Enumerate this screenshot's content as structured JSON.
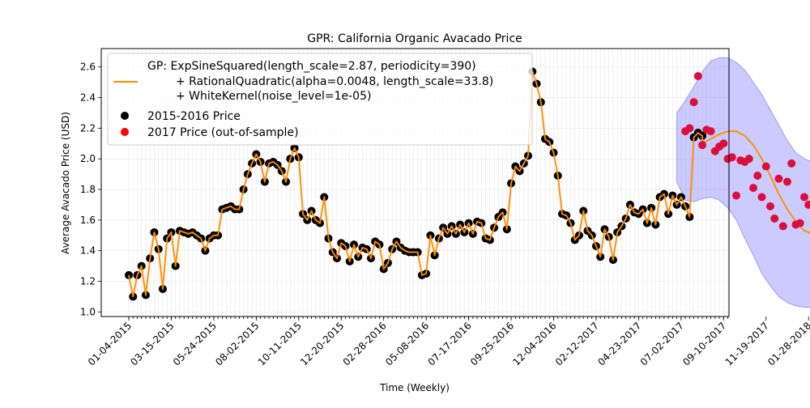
{
  "chart_data": {
    "type": "scatter",
    "title": "GPR: California Organic Avacado Price",
    "xlabel": "Time (Weekly)",
    "ylabel": "Average Avacado Price (USD)",
    "ylim": [
      0.97,
      2.72
    ],
    "yticks": [
      "1.0",
      "1.2",
      "1.4",
      "1.6",
      "1.8",
      "2.0",
      "2.2",
      "2.4",
      "2.6"
    ],
    "xtick_labels": [
      "01-04-2015",
      "03-15-2015",
      "05-24-2015",
      "08-02-2015",
      "10-11-2015",
      "12-20-2015",
      "02-28-2016",
      "05-08-2016",
      "07-17-2016",
      "09-25-2016",
      "12-04-2016",
      "02-12-2017",
      "04-23-2017",
      "07-02-2017",
      "09-10-2017",
      "11-19-2017",
      "01-28-2018"
    ],
    "grid": true,
    "legend_position": "upper-left",
    "legend": {
      "gp_line1": "GP: ExpSineSquared(length_scale=2.87, periodicity=390)",
      "gp_line2": "+ RationalQuadratic(alpha=0.0048, length_scale=33.8)",
      "gp_line3": "+ WhiteKernel(noise_level=1e-05)",
      "train_label": "2015-2016 Price",
      "test_label": "2017 Price (out-of-sample)"
    },
    "colors": {
      "gp_line": "#ff8c00",
      "train": "#000000",
      "test": "#ff0000",
      "band": "#6b6bff"
    },
    "series": [
      {
        "name": "2015-2016 Price",
        "x_start": "01-04-2015",
        "x_step_weeks": 1,
        "values": [
          1.24,
          1.1,
          1.24,
          1.3,
          1.11,
          1.35,
          1.52,
          1.41,
          1.15,
          1.48,
          1.52,
          1.3,
          1.53,
          1.52,
          1.51,
          1.52,
          1.5,
          1.48,
          1.4,
          1.48,
          1.5,
          1.5,
          1.67,
          1.68,
          1.69,
          1.67,
          1.67,
          1.8,
          1.9,
          1.97,
          2.03,
          1.98,
          1.85,
          1.97,
          1.98,
          1.96,
          1.92,
          1.85,
          2.0,
          2.07,
          2.01,
          1.64,
          1.6,
          1.66,
          1.6,
          1.58,
          1.75,
          1.48,
          1.39,
          1.35,
          1.45,
          1.43,
          1.33,
          1.44,
          1.36,
          1.42,
          1.41,
          1.35,
          1.46,
          1.44,
          1.28,
          1.32,
          1.41,
          1.46,
          1.42,
          1.4,
          1.39,
          1.39,
          1.39,
          1.24,
          1.25,
          1.5,
          1.37,
          1.48,
          1.55,
          1.51,
          1.56,
          1.51,
          1.57,
          1.52,
          1.58,
          1.51,
          1.59,
          1.58,
          1.48,
          1.47,
          1.55,
          1.62,
          1.65,
          1.54,
          1.84,
          1.95,
          1.92,
          1.97,
          2.02,
          2.57,
          2.49,
          2.37,
          2.13,
          2.11,
          2.04,
          1.89,
          1.64,
          1.63,
          1.58,
          1.47,
          1.5,
          1.66,
          1.53,
          1.5,
          1.43,
          1.36,
          1.54,
          1.49,
          1.34,
          1.52,
          1.56,
          1.61,
          1.7,
          1.65,
          1.64,
          1.67,
          1.58,
          1.68,
          1.57,
          1.75,
          1.77,
          1.64,
          1.76,
          1.7,
          1.75,
          1.69,
          1.62,
          2.14,
          2.17,
          2.15
        ]
      },
      {
        "name": "2017 Price (out-of-sample)",
        "x_start": "07-09-2017",
        "x_step_weeks": 1,
        "values": [
          2.18,
          2.2,
          2.37,
          2.54,
          2.09,
          2.19,
          2.18,
          2.05,
          2.08,
          2.1,
          2.0,
          2.01,
          1.76,
          1.99,
          1.98,
          2.0,
          1.81,
          1.89,
          1.75,
          1.95,
          1.69,
          1.61,
          1.87,
          1.56,
          1.85,
          1.97,
          1.57,
          1.58,
          1.75,
          1.7
        ]
      },
      {
        "name": "GP mean",
        "x": [
          "07-02-2016",
          "07-16-2016",
          "08-06-2016",
          "08-27-2016",
          "09-17-2016",
          "10-08-2016",
          "10-29-2016",
          "11-19-2016",
          "12-10-2016"
        ],
        "note": "fitted line through training data, extended as forecast",
        "forecast": {
          "x_start": "06-25-2017",
          "x_step_weeks": 2,
          "mean": [
            2.08,
            2.06,
            2.07,
            2.1,
            2.13,
            2.16,
            2.18,
            2.18,
            2.15,
            2.09,
            2.0,
            1.89,
            1.77,
            1.67,
            1.59,
            1.53,
            1.51
          ],
          "upper": [
            2.3,
            2.38,
            2.47,
            2.57,
            2.64,
            2.66,
            2.66,
            2.63,
            2.58,
            2.5,
            2.42,
            2.32,
            2.22,
            2.12,
            2.04,
            2.0,
            1.98
          ],
          "lower": [
            1.85,
            1.73,
            1.72,
            1.74,
            1.75,
            1.73,
            1.68,
            1.6,
            1.48,
            1.37,
            1.25,
            1.17,
            1.1,
            1.06,
            1.04,
            1.03,
            1.03
          ]
        }
      }
    ]
  }
}
